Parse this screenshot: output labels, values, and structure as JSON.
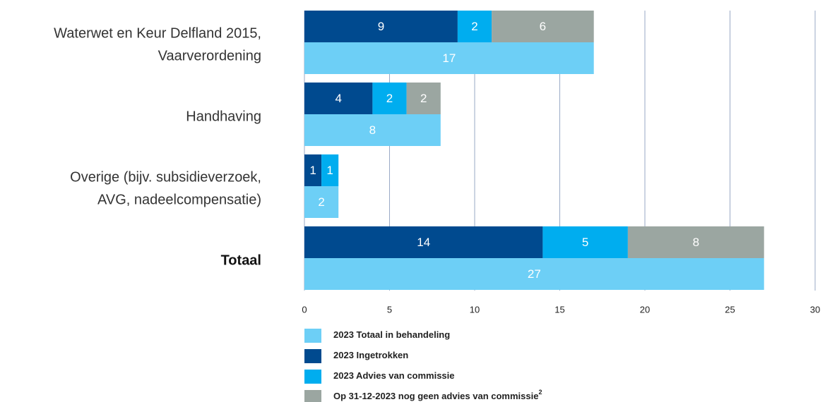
{
  "chart_data": {
    "type": "bar",
    "categories": [
      [
        "Waterwet en Keur Delfland 2015,",
        "Vaarverordening"
      ],
      [
        "Handhaving"
      ],
      [
        "Overige (bijv. subsidieverzoek,",
        "AVG, nadeelcompensatie)"
      ],
      [
        "Totaal"
      ]
    ],
    "series": [
      {
        "name": "2023 Totaal in behandeling",
        "color": "#6dcff6",
        "values": [
          17,
          8,
          2,
          27
        ]
      },
      {
        "name": "2023 Ingetrokken",
        "color": "#004a8f",
        "values": [
          9,
          4,
          1,
          14
        ]
      },
      {
        "name": "2023 Advies van commissie",
        "color": "#00adef",
        "values": [
          2,
          2,
          1,
          5
        ]
      },
      {
        "name": "Op 31-12-2023 nog geen advies van commissie",
        "footnote": "2",
        "color": "#9ba6a1",
        "values": [
          6,
          2,
          null,
          8
        ]
      }
    ],
    "xlim": [
      0,
      30
    ],
    "xticks": [
      0,
      5,
      10,
      15,
      20,
      25,
      30
    ],
    "grid": true
  }
}
